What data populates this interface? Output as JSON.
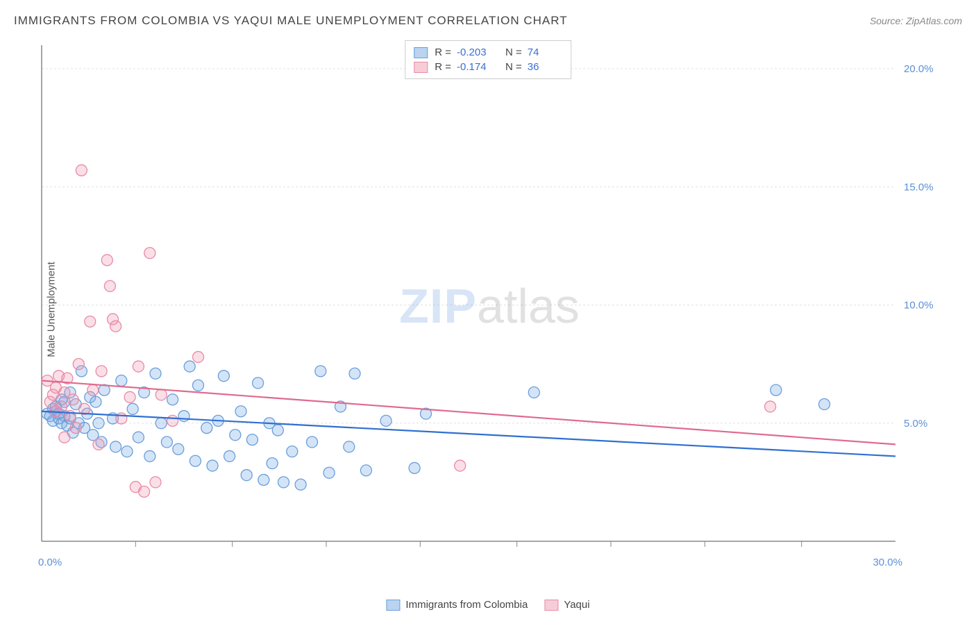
{
  "header": {
    "title": "IMMIGRANTS FROM COLOMBIA VS YAQUI MALE UNEMPLOYMENT CORRELATION CHART",
    "source": "Source: ZipAtlas.com"
  },
  "ylabel": "Male Unemployment",
  "watermark": {
    "part1": "ZIP",
    "part2": "atlas"
  },
  "chart": {
    "type": "scatter",
    "background_color": "#ffffff",
    "grid_color": "#e0e0e0",
    "axis_color": "#888888",
    "xlim": [
      0,
      30
    ],
    "ylim": [
      0,
      21
    ],
    "x_ticks": [
      0,
      30
    ],
    "x_tick_labels": [
      "0.0%",
      "30.0%"
    ],
    "x_minor_ticks": [
      3.3,
      6.7,
      10.0,
      13.3,
      16.7,
      20.0,
      23.3,
      26.7
    ],
    "y_ticks": [
      5,
      10,
      15,
      20
    ],
    "y_tick_labels": [
      "5.0%",
      "10.0%",
      "15.0%",
      "20.0%"
    ],
    "y_label_color": "#5b8fd6",
    "x_label_color": "#5b8fd6",
    "marker_radius": 8,
    "marker_stroke_width": 1.3,
    "trend_line_width": 2.2
  },
  "series": [
    {
      "name": "Immigrants from Colombia",
      "color_fill": "rgba(120,170,230,0.32)",
      "color_stroke": "#6a9edb",
      "color_swatch_fill": "#b9d3f0",
      "color_swatch_stroke": "#6a9edb",
      "R": "-0.203",
      "N": "74",
      "stat_color": "#3b6fd1",
      "trend": {
        "y_at_x0": 5.5,
        "y_at_x30": 3.6,
        "color": "#2f6fd1"
      },
      "points": [
        [
          0.2,
          5.4
        ],
        [
          0.3,
          5.3
        ],
        [
          0.4,
          5.6
        ],
        [
          0.4,
          5.1
        ],
        [
          0.5,
          5.5
        ],
        [
          0.5,
          5.7
        ],
        [
          0.6,
          5.2
        ],
        [
          0.6,
          5.4
        ],
        [
          0.7,
          6.0
        ],
        [
          0.7,
          5.0
        ],
        [
          0.8,
          5.9
        ],
        [
          0.8,
          5.3
        ],
        [
          0.9,
          4.9
        ],
        [
          1.0,
          6.3
        ],
        [
          1.0,
          5.2
        ],
        [
          1.1,
          4.6
        ],
        [
          1.2,
          5.8
        ],
        [
          1.3,
          5.0
        ],
        [
          1.4,
          7.2
        ],
        [
          1.5,
          4.8
        ],
        [
          1.6,
          5.4
        ],
        [
          1.7,
          6.1
        ],
        [
          1.8,
          4.5
        ],
        [
          1.9,
          5.9
        ],
        [
          2.0,
          5.0
        ],
        [
          2.1,
          4.2
        ],
        [
          2.2,
          6.4
        ],
        [
          2.5,
          5.2
        ],
        [
          2.6,
          4.0
        ],
        [
          2.8,
          6.8
        ],
        [
          3.0,
          3.8
        ],
        [
          3.2,
          5.6
        ],
        [
          3.4,
          4.4
        ],
        [
          3.6,
          6.3
        ],
        [
          3.8,
          3.6
        ],
        [
          4.0,
          7.1
        ],
        [
          4.2,
          5.0
        ],
        [
          4.4,
          4.2
        ],
        [
          4.6,
          6.0
        ],
        [
          4.8,
          3.9
        ],
        [
          5.0,
          5.3
        ],
        [
          5.2,
          7.4
        ],
        [
          5.4,
          3.4
        ],
        [
          5.5,
          6.6
        ],
        [
          5.8,
          4.8
        ],
        [
          6.0,
          3.2
        ],
        [
          6.2,
          5.1
        ],
        [
          6.4,
          7.0
        ],
        [
          6.6,
          3.6
        ],
        [
          6.8,
          4.5
        ],
        [
          7.0,
          5.5
        ],
        [
          7.2,
          2.8
        ],
        [
          7.4,
          4.3
        ],
        [
          7.6,
          6.7
        ],
        [
          7.8,
          2.6
        ],
        [
          8.0,
          5.0
        ],
        [
          8.1,
          3.3
        ],
        [
          8.3,
          4.7
        ],
        [
          8.5,
          2.5
        ],
        [
          8.8,
          3.8
        ],
        [
          9.1,
          2.4
        ],
        [
          9.5,
          4.2
        ],
        [
          9.8,
          7.2
        ],
        [
          10.1,
          2.9
        ],
        [
          10.5,
          5.7
        ],
        [
          10.8,
          4.0
        ],
        [
          11.0,
          7.1
        ],
        [
          11.4,
          3.0
        ],
        [
          12.1,
          5.1
        ],
        [
          13.1,
          3.1
        ],
        [
          13.5,
          5.4
        ],
        [
          17.3,
          6.3
        ],
        [
          25.8,
          6.4
        ],
        [
          27.5,
          5.8
        ]
      ]
    },
    {
      "name": "Yaqui",
      "color_fill": "rgba(240,150,175,0.30)",
      "color_stroke": "#e88aa6",
      "color_swatch_fill": "#f6cdd7",
      "color_swatch_stroke": "#e88aa6",
      "R": "-0.174",
      "N": "36",
      "stat_color": "#3b6fd1",
      "trend": {
        "y_at_x0": 6.8,
        "y_at_x30": 4.1,
        "color": "#e06a8e"
      },
      "points": [
        [
          0.2,
          6.8
        ],
        [
          0.3,
          5.9
        ],
        [
          0.4,
          6.2
        ],
        [
          0.5,
          6.5
        ],
        [
          0.5,
          5.5
        ],
        [
          0.6,
          7.0
        ],
        [
          0.7,
          5.7
        ],
        [
          0.8,
          6.3
        ],
        [
          0.8,
          4.4
        ],
        [
          0.9,
          6.9
        ],
        [
          1.0,
          5.3
        ],
        [
          1.1,
          6.0
        ],
        [
          1.2,
          4.8
        ],
        [
          1.3,
          7.5
        ],
        [
          1.4,
          15.7
        ],
        [
          1.5,
          5.6
        ],
        [
          1.7,
          9.3
        ],
        [
          1.8,
          6.4
        ],
        [
          2.0,
          4.1
        ],
        [
          2.1,
          7.2
        ],
        [
          2.3,
          11.9
        ],
        [
          2.4,
          10.8
        ],
        [
          2.5,
          9.4
        ],
        [
          2.6,
          9.1
        ],
        [
          2.8,
          5.2
        ],
        [
          3.1,
          6.1
        ],
        [
          3.3,
          2.3
        ],
        [
          3.4,
          7.4
        ],
        [
          3.6,
          2.1
        ],
        [
          3.8,
          12.2
        ],
        [
          4.0,
          2.5
        ],
        [
          4.2,
          6.2
        ],
        [
          4.6,
          5.1
        ],
        [
          5.5,
          7.8
        ],
        [
          14.7,
          3.2
        ],
        [
          25.6,
          5.7
        ]
      ]
    }
  ],
  "legend_bottom": [
    {
      "label": "Immigrants from Colombia",
      "series": 0
    },
    {
      "label": "Yaqui",
      "series": 1
    }
  ]
}
